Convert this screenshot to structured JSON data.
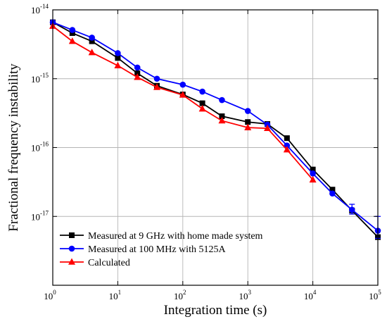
{
  "chart_data": {
    "type": "line",
    "title": "",
    "xlabel": "Integration time (s)",
    "ylabel": "Fractional frequency instability",
    "x_scale": "log",
    "y_scale": "log",
    "xlim": [
      1,
      100000
    ],
    "ylim": [
      1e-18,
      1e-14
    ],
    "grid": true,
    "legend_position": "bottom-left",
    "x_ticks": [
      {
        "value": 1,
        "base": "10",
        "exp": "0"
      },
      {
        "value": 10,
        "base": "10",
        "exp": "1"
      },
      {
        "value": 100,
        "base": "10",
        "exp": "2"
      },
      {
        "value": 1000,
        "base": "10",
        "exp": "3"
      },
      {
        "value": 10000,
        "base": "10",
        "exp": "4"
      },
      {
        "value": 100000,
        "base": "10",
        "exp": "5"
      }
    ],
    "y_ticks": [
      {
        "value": 1e-17,
        "base": "10",
        "exp": "-17"
      },
      {
        "value": 1e-16,
        "base": "10",
        "exp": "-16"
      },
      {
        "value": 1e-15,
        "base": "10",
        "exp": "-15"
      },
      {
        "value": 1e-14,
        "base": "10",
        "exp": "-14"
      }
    ],
    "series": [
      {
        "name": "Measured at 9 GHz with home made system",
        "color": "#000000",
        "marker": "square",
        "points": [
          [
            1,
            6.6e-15
          ],
          [
            2,
            4.6e-15
          ],
          [
            4,
            3.5e-15
          ],
          [
            10,
            2e-15
          ],
          [
            20,
            1.2e-15
          ],
          [
            40,
            7.9e-16
          ],
          [
            100,
            5.9e-16
          ],
          [
            200,
            4.4e-16
          ],
          [
            400,
            2.85e-16
          ],
          [
            1000,
            2.35e-16
          ],
          [
            2000,
            2.2e-16
          ],
          [
            4000,
            1.37e-16
          ],
          [
            10000,
            4.8e-17
          ],
          [
            20000,
            2.45e-17
          ],
          [
            40000,
            1.22e-17
          ],
          [
            100000,
            5e-18
          ]
        ]
      },
      {
        "name": "Measured at 100 MHz with 5125A",
        "color": "#0000ff",
        "marker": "circle",
        "points": [
          [
            1,
            6.6e-15
          ],
          [
            2,
            5.1e-15
          ],
          [
            4,
            3.95e-15
          ],
          [
            10,
            2.35e-15
          ],
          [
            20,
            1.45e-15
          ],
          [
            40,
            1e-15
          ],
          [
            100,
            8.2e-16
          ],
          [
            200,
            6.5e-16
          ],
          [
            400,
            4.9e-16
          ],
          [
            1000,
            3.4e-16
          ],
          [
            2000,
            2.15e-16
          ],
          [
            4000,
            1.07e-16
          ],
          [
            10000,
            4.2e-17
          ],
          [
            20000,
            2.15e-17
          ],
          [
            40000,
            1.25e-17
          ],
          [
            100000,
            6.2e-18
          ]
        ],
        "error_bars": [
          {
            "x": 40000,
            "low": 1.08e-17,
            "high": 1.5e-17
          },
          {
            "x": 100000,
            "low": 4.8e-18,
            "high": 1e-17
          }
        ]
      },
      {
        "name": "Calculated",
        "color": "#ff0000",
        "marker": "triangle",
        "points": [
          [
            1,
            5.8e-15
          ],
          [
            2,
            3.5e-15
          ],
          [
            4,
            2.4e-15
          ],
          [
            10,
            1.55e-15
          ],
          [
            20,
            1.05e-15
          ],
          [
            40,
            7.5e-16
          ],
          [
            100,
            5.8e-16
          ],
          [
            200,
            3.65e-16
          ],
          [
            400,
            2.45e-16
          ],
          [
            1000,
            1.95e-16
          ],
          [
            2000,
            1.9e-16
          ],
          [
            4000,
            9.3e-17
          ],
          [
            10000,
            3.4e-17
          ]
        ]
      }
    ]
  }
}
